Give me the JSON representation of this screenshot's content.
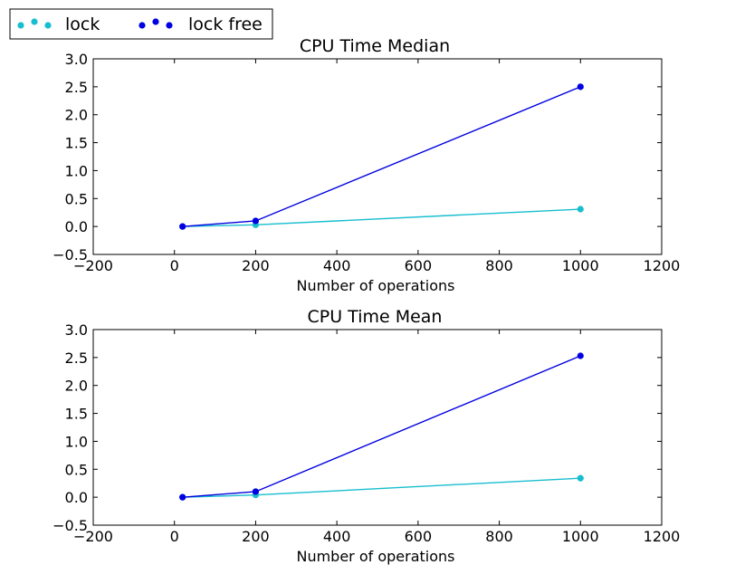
{
  "legend": {
    "placement": "top-left",
    "entries": [
      {
        "label": "lock",
        "color": "#17becf"
      },
      {
        "label": "lock free",
        "color": "#0000e0"
      }
    ]
  },
  "chart_data": [
    {
      "type": "line",
      "title": "CPU Time Median",
      "xlabel": "Number of operations",
      "ylabel": "",
      "xlim": [
        -200,
        1200
      ],
      "ylim": [
        -0.5,
        3.0
      ],
      "xticks": [
        -200,
        0,
        200,
        400,
        600,
        800,
        1000,
        1200
      ],
      "yticks": [
        -0.5,
        0.0,
        0.5,
        1.0,
        1.5,
        2.0,
        2.5,
        3.0
      ],
      "x": [
        20,
        200,
        1000
      ],
      "series": [
        {
          "name": "lock",
          "color": "#17becf",
          "values": [
            0.0,
            0.03,
            0.31
          ]
        },
        {
          "name": "lock free",
          "color": "#0000e0",
          "values": [
            0.0,
            0.1,
            2.5
          ]
        }
      ],
      "grid": false
    },
    {
      "type": "line",
      "title": "CPU Time Mean",
      "xlabel": "Number of operations",
      "ylabel": "",
      "xlim": [
        -200,
        1200
      ],
      "ylim": [
        -0.5,
        3.0
      ],
      "xticks": [
        -200,
        0,
        200,
        400,
        600,
        800,
        1000,
        1200
      ],
      "yticks": [
        -0.5,
        0.0,
        0.5,
        1.0,
        1.5,
        2.0,
        2.5,
        3.0
      ],
      "x": [
        20,
        200,
        1000
      ],
      "series": [
        {
          "name": "lock",
          "color": "#17becf",
          "values": [
            0.0,
            0.04,
            0.34
          ]
        },
        {
          "name": "lock free",
          "color": "#0000e0",
          "values": [
            0.0,
            0.1,
            2.53
          ]
        }
      ],
      "grid": false
    }
  ]
}
